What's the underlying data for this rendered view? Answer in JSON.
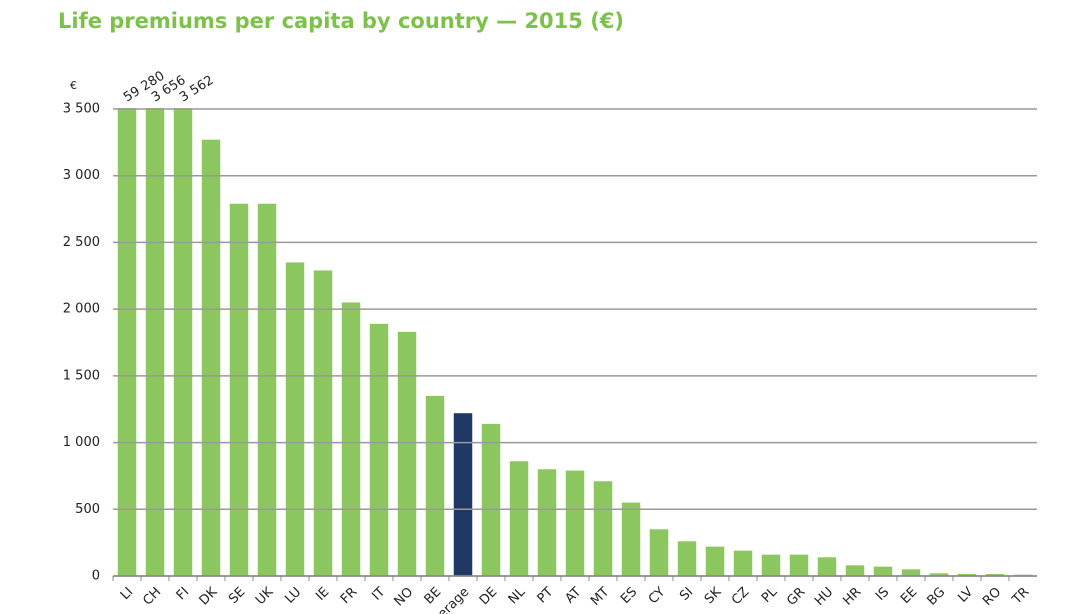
{
  "chart_data": {
    "type": "bar",
    "title": "Life premiums per capita by country — 2015 (€)",
    "y_unit": "€",
    "categories": [
      "LI",
      "CH",
      "FI",
      "DK",
      "SE",
      "UK",
      "LU",
      "IE",
      "FR",
      "IT",
      "NO",
      "BE",
      "Average",
      "DE",
      "NL",
      "PT",
      "AT",
      "MT",
      "ES",
      "CY",
      "SI",
      "SK",
      "CZ",
      "PL",
      "GR",
      "HU",
      "HR",
      "IS",
      "EE",
      "BG",
      "LV",
      "RO",
      "TR"
    ],
    "values": [
      59280,
      3656,
      3562,
      3270,
      2790,
      2790,
      2350,
      2290,
      2050,
      1890,
      1830,
      1350,
      1220,
      1140,
      860,
      800,
      790,
      710,
      550,
      350,
      260,
      220,
      190,
      160,
      160,
      140,
      80,
      70,
      50,
      20,
      15,
      15,
      10
    ],
    "value_labels": [
      "59 280",
      "3 656",
      "3 562",
      null,
      null,
      null,
      null,
      null,
      null,
      null,
      null,
      null,
      null,
      null,
      null,
      null,
      null,
      null,
      null,
      null,
      null,
      null,
      null,
      null,
      null,
      null,
      null,
      null,
      null,
      null,
      null,
      null,
      null
    ],
    "colors": [
      "#8cc65e",
      "#8cc65e",
      "#8cc65e",
      "#8cc65e",
      "#8cc65e",
      "#8cc65e",
      "#8cc65e",
      "#8cc65e",
      "#8cc65e",
      "#8cc65e",
      "#8cc65e",
      "#8cc65e",
      "#1f3864",
      "#8cc65e",
      "#8cc65e",
      "#8cc65e",
      "#8cc65e",
      "#8cc65e",
      "#8cc65e",
      "#8cc65e",
      "#8cc65e",
      "#8cc65e",
      "#8cc65e",
      "#8cc65e",
      "#8cc65e",
      "#8cc65e",
      "#8cc65e",
      "#8cc65e",
      "#8cc65e",
      "#8cc65e",
      "#8cc65e",
      "#8cc65e",
      "#8cc65e"
    ],
    "ylim": [
      0,
      3500
    ],
    "yticks": [
      0,
      500,
      {
        "value": 1000,
        "label": "1 000"
      },
      {
        "value": 1500,
        "label": "1 500"
      },
      {
        "value": 2000,
        "label": "2 000"
      },
      {
        "value": 2500,
        "label": "2 500"
      },
      {
        "value": 3000,
        "label": "3 000"
      },
      {
        "value": 3500,
        "label": "3 500"
      }
    ],
    "grid": true
  }
}
